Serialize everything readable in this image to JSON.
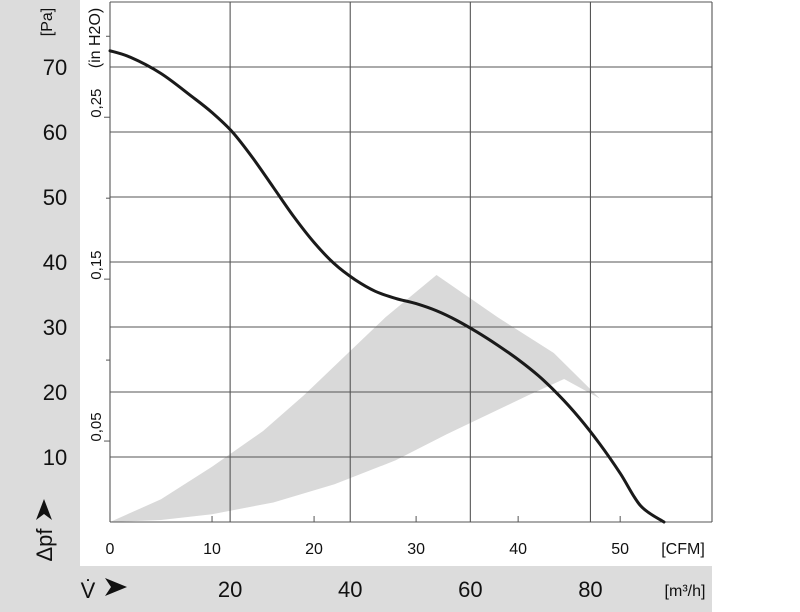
{
  "chart_data": {
    "type": "line",
    "title": "",
    "x_axis": {
      "primary_label": "[CFM]",
      "primary_ticks": [
        "0",
        "10",
        "20",
        "30",
        "40",
        "50"
      ],
      "primary_range": [
        0,
        59
      ],
      "secondary_symbol": "V̇",
      "secondary_label": "[m³/h]",
      "secondary_ticks": [
        "20",
        "40",
        "60",
        "80"
      ]
    },
    "y_axis": {
      "primary_symbol": "Δpf",
      "primary_label": "[Pa]",
      "primary_ticks": [
        "10",
        "20",
        "30",
        "40",
        "50",
        "60",
        "70"
      ],
      "primary_range": [
        0,
        80
      ],
      "secondary_label": "(in H2O)",
      "secondary_ticks": [
        "0,05",
        "0,15",
        "0,25"
      ]
    },
    "grid": true,
    "series": [
      {
        "x": [
          0,
          2,
          5,
          8,
          10,
          12,
          14,
          16,
          18,
          20,
          22,
          24,
          26,
          28,
          30,
          32,
          34,
          36,
          38,
          40,
          42,
          44,
          46,
          48,
          50,
          52,
          54.3
        ],
        "y": [
          72.5,
          71.5,
          69,
          65.5,
          63,
          60,
          56,
          51.5,
          47,
          43,
          39.7,
          37.3,
          35.5,
          34.4,
          33.6,
          32.5,
          31,
          29.2,
          27.2,
          25,
          22.5,
          19.5,
          16,
          12,
          7.5,
          2.5,
          0
        ]
      }
    ],
    "operating_region": {
      "x": [
        0,
        5,
        10,
        16,
        22,
        28,
        33,
        37,
        41,
        44.5,
        48,
        43.5,
        38,
        32,
        27,
        23,
        19,
        15,
        10,
        5,
        0
      ],
      "y": [
        0,
        0.3,
        1.2,
        3,
        5.8,
        9.5,
        13.5,
        16.5,
        19.5,
        22,
        19,
        26,
        31.5,
        38,
        31.5,
        25.5,
        19.5,
        14,
        8.5,
        3.5,
        0
      ]
    },
    "colors": {
      "curve": "#1a1a1a",
      "region": "#d9d9d9",
      "grid": "#555555",
      "left_band": "#dcdcdc",
      "bottom_band": "#dcdcdc"
    }
  }
}
